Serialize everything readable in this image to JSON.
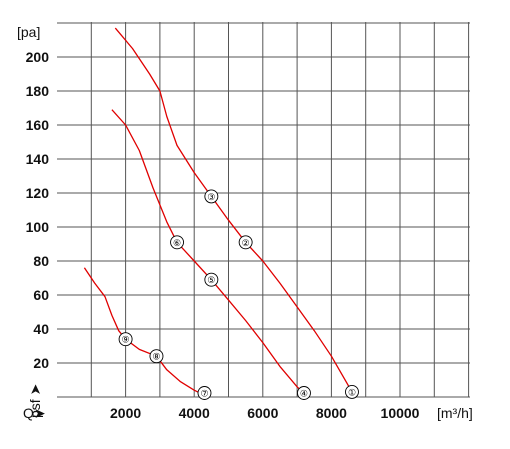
{
  "chart_data": {
    "type": "line",
    "xlim": [
      0,
      11000
    ],
    "ylim": [
      0,
      220
    ],
    "xticks": [
      2000,
      4000,
      6000,
      8000,
      10000
    ],
    "yticks": [
      20,
      40,
      60,
      80,
      100,
      120,
      140,
      160,
      180,
      200
    ],
    "grid": true,
    "xunit": "[m³/h]",
    "yunit": "[pa]",
    "xaxis_marker": "Q➤",
    "yaxis_marker": "psf ➤",
    "line_color": "#e00000",
    "series": [
      {
        "values": [
          [
            1700,
            217
          ],
          [
            2200,
            205
          ],
          [
            2700,
            190
          ],
          [
            3000,
            180
          ],
          [
            3200,
            165
          ],
          [
            3500,
            148
          ],
          [
            4000,
            132
          ],
          [
            4500,
            118
          ],
          [
            5000,
            104
          ],
          [
            5500,
            91
          ],
          [
            6000,
            80
          ],
          [
            6500,
            67
          ],
          [
            7000,
            53
          ],
          [
            7500,
            39
          ],
          [
            8000,
            24
          ],
          [
            8600,
            3
          ]
        ],
        "markers": [
          {
            "label": "①",
            "x": 8600,
            "y": 3
          },
          {
            "label": "②",
            "x": 5500,
            "y": 91
          },
          {
            "label": "③",
            "x": 4500,
            "y": 118
          }
        ]
      },
      {
        "values": [
          [
            1600,
            169
          ],
          [
            2000,
            160
          ],
          [
            2400,
            145
          ],
          [
            2800,
            123
          ],
          [
            3200,
            103
          ],
          [
            3500,
            91
          ],
          [
            4000,
            80
          ],
          [
            4500,
            69
          ],
          [
            5000,
            57
          ],
          [
            5500,
            45
          ],
          [
            6000,
            32
          ],
          [
            6500,
            18
          ],
          [
            7000,
            6
          ],
          [
            7200,
            2
          ]
        ],
        "markers": [
          {
            "label": "④",
            "x": 7200,
            "y": 2
          },
          {
            "label": "⑤",
            "x": 4500,
            "y": 69
          },
          {
            "label": "⑥",
            "x": 3500,
            "y": 91
          }
        ]
      },
      {
        "values": [
          [
            800,
            76
          ],
          [
            1100,
            67
          ],
          [
            1400,
            59
          ],
          [
            1600,
            48
          ],
          [
            1800,
            39
          ],
          [
            2000,
            34
          ],
          [
            2400,
            28
          ],
          [
            2900,
            24
          ],
          [
            3200,
            16
          ],
          [
            3600,
            9
          ],
          [
            4000,
            4
          ],
          [
            4300,
            1
          ]
        ],
        "markers": [
          {
            "label": "⑦",
            "x": 4300,
            "y": 1
          },
          {
            "label": "⑧",
            "x": 2900,
            "y": 24
          },
          {
            "label": "⑨",
            "x": 2000,
            "y": 34
          }
        ]
      }
    ]
  }
}
